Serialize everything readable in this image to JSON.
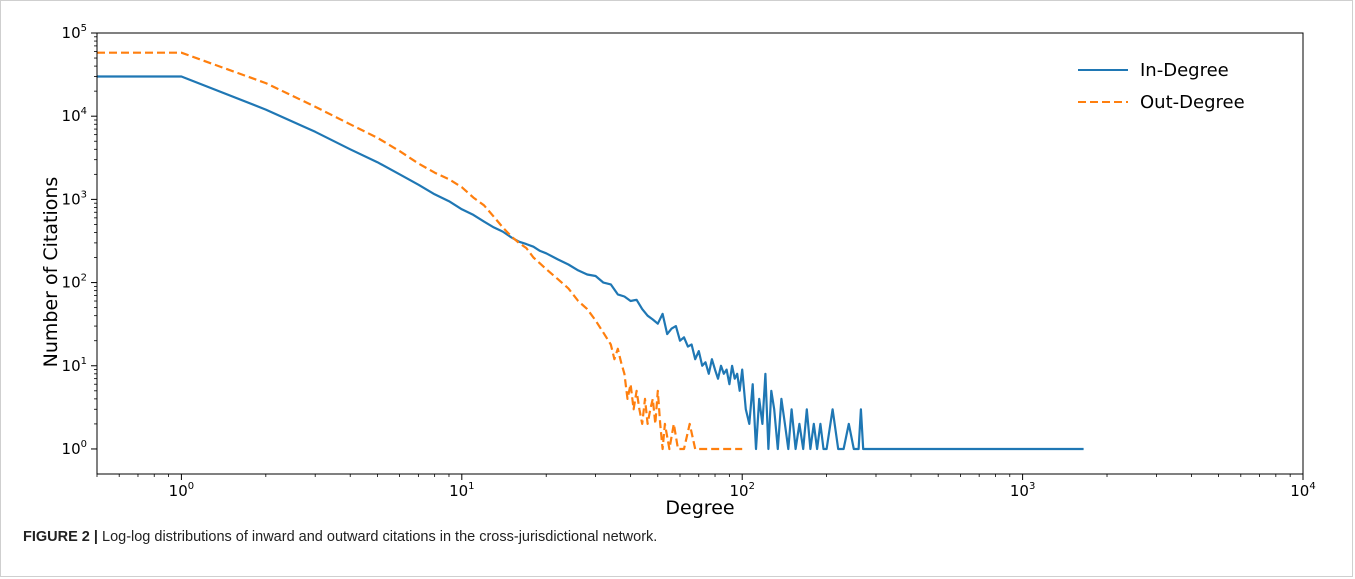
{
  "caption": {
    "label": "FIGURE 2 |",
    "text": "Log-log distributions of inward and outward citations in the cross-jurisdictional network."
  },
  "chart_data": {
    "type": "line",
    "xlabel": "Degree",
    "ylabel": "Number of Citations",
    "xscale": "log",
    "yscale": "log",
    "xlim": [
      0.5,
      10000
    ],
    "ylim": [
      0.5,
      100000
    ],
    "xticks": [
      {
        "base": "10",
        "exp": "0"
      },
      {
        "base": "10",
        "exp": "1"
      },
      {
        "base": "10",
        "exp": "2"
      },
      {
        "base": "10",
        "exp": "3"
      },
      {
        "base": "10",
        "exp": "4"
      }
    ],
    "yticks": [
      {
        "base": "10",
        "exp": "0"
      },
      {
        "base": "10",
        "exp": "1"
      },
      {
        "base": "10",
        "exp": "2"
      },
      {
        "base": "10",
        "exp": "3"
      },
      {
        "base": "10",
        "exp": "4"
      },
      {
        "base": "10",
        "exp": "5"
      }
    ],
    "legend": "top-right",
    "grid": false,
    "series": [
      {
        "name": "In-Degree",
        "color": "#1f77b4",
        "style": "solid",
        "points": [
          [
            0.5,
            30000
          ],
          [
            1,
            30000
          ],
          [
            2,
            12000
          ],
          [
            3,
            6500
          ],
          [
            4,
            4000
          ],
          [
            5,
            2800
          ],
          [
            6,
            2000
          ],
          [
            7,
            1500
          ],
          [
            8,
            1150
          ],
          [
            9,
            950
          ],
          [
            10,
            760
          ],
          [
            11,
            650
          ],
          [
            12,
            540
          ],
          [
            13,
            460
          ],
          [
            14,
            410
          ],
          [
            15,
            350
          ],
          [
            16,
            310
          ],
          [
            17,
            290
          ],
          [
            18,
            270
          ],
          [
            19,
            240
          ],
          [
            20,
            225
          ],
          [
            22,
            190
          ],
          [
            24,
            165
          ],
          [
            26,
            140
          ],
          [
            28,
            125
          ],
          [
            30,
            120
          ],
          [
            32,
            100
          ],
          [
            34,
            95
          ],
          [
            36,
            72
          ],
          [
            38,
            68
          ],
          [
            40,
            60
          ],
          [
            42,
            62
          ],
          [
            44,
            48
          ],
          [
            46,
            40
          ],
          [
            48,
            36
          ],
          [
            50,
            32
          ],
          [
            52,
            42
          ],
          [
            54,
            24
          ],
          [
            56,
            28
          ],
          [
            58,
            30
          ],
          [
            60,
            20
          ],
          [
            62,
            22
          ],
          [
            64,
            17
          ],
          [
            66,
            18
          ],
          [
            68,
            12
          ],
          [
            70,
            15
          ],
          [
            72,
            10
          ],
          [
            74,
            11
          ],
          [
            76,
            8
          ],
          [
            78,
            12
          ],
          [
            80,
            9
          ],
          [
            82,
            7
          ],
          [
            84,
            10
          ],
          [
            86,
            8
          ],
          [
            88,
            9
          ],
          [
            90,
            6
          ],
          [
            92,
            10
          ],
          [
            94,
            7
          ],
          [
            96,
            8
          ],
          [
            98,
            5
          ],
          [
            100,
            9
          ],
          [
            103,
            3
          ],
          [
            106,
            2
          ],
          [
            109,
            6
          ],
          [
            112,
            1
          ],
          [
            115,
            4
          ],
          [
            118,
            2
          ],
          [
            121,
            8
          ],
          [
            124,
            1
          ],
          [
            127,
            5
          ],
          [
            130,
            3
          ],
          [
            134,
            1
          ],
          [
            138,
            4
          ],
          [
            142,
            2
          ],
          [
            146,
            1
          ],
          [
            150,
            3
          ],
          [
            155,
            1
          ],
          [
            160,
            2
          ],
          [
            165,
            1
          ],
          [
            170,
            3
          ],
          [
            175,
            1
          ],
          [
            180,
            2
          ],
          [
            185,
            1
          ],
          [
            190,
            2
          ],
          [
            195,
            1
          ],
          [
            200,
            1
          ],
          [
            210,
            3
          ],
          [
            220,
            1
          ],
          [
            230,
            1
          ],
          [
            240,
            2
          ],
          [
            250,
            1
          ],
          [
            260,
            1
          ],
          [
            265,
            3
          ],
          [
            270,
            1
          ],
          [
            300,
            1
          ],
          [
            500,
            1
          ],
          [
            1000,
            1
          ],
          [
            1650,
            1
          ]
        ]
      },
      {
        "name": "Out-Degree",
        "color": "#ff7f0e",
        "style": "dashed",
        "points": [
          [
            0.5,
            58000
          ],
          [
            1,
            58000
          ],
          [
            2,
            25000
          ],
          [
            3,
            13000
          ],
          [
            4,
            8000
          ],
          [
            5,
            5500
          ],
          [
            6,
            3800
          ],
          [
            7,
            2700
          ],
          [
            8,
            2100
          ],
          [
            9,
            1750
          ],
          [
            10,
            1400
          ],
          [
            11,
            1050
          ],
          [
            12,
            850
          ],
          [
            13,
            620
          ],
          [
            14,
            460
          ],
          [
            15,
            360
          ],
          [
            16,
            300
          ],
          [
            17,
            260
          ],
          [
            18,
            200
          ],
          [
            19,
            170
          ],
          [
            20,
            145
          ],
          [
            22,
            110
          ],
          [
            24,
            85
          ],
          [
            26,
            60
          ],
          [
            28,
            48
          ],
          [
            30,
            35
          ],
          [
            32,
            25
          ],
          [
            34,
            18
          ],
          [
            35,
            12
          ],
          [
            36,
            16
          ],
          [
            37,
            11
          ],
          [
            38,
            8
          ],
          [
            39,
            4
          ],
          [
            40,
            6
          ],
          [
            41,
            3
          ],
          [
            42,
            5
          ],
          [
            43,
            3
          ],
          [
            44,
            2
          ],
          [
            45,
            4
          ],
          [
            46,
            2
          ],
          [
            47,
            3
          ],
          [
            48,
            4
          ],
          [
            49,
            2
          ],
          [
            50,
            5
          ],
          [
            51,
            2
          ],
          [
            52,
            1
          ],
          [
            53,
            2
          ],
          [
            55,
            1
          ],
          [
            57,
            2
          ],
          [
            59,
            1
          ],
          [
            62,
            1
          ],
          [
            65,
            2
          ],
          [
            68,
            1
          ],
          [
            72,
            1
          ],
          [
            100,
            1
          ]
        ]
      }
    ]
  }
}
